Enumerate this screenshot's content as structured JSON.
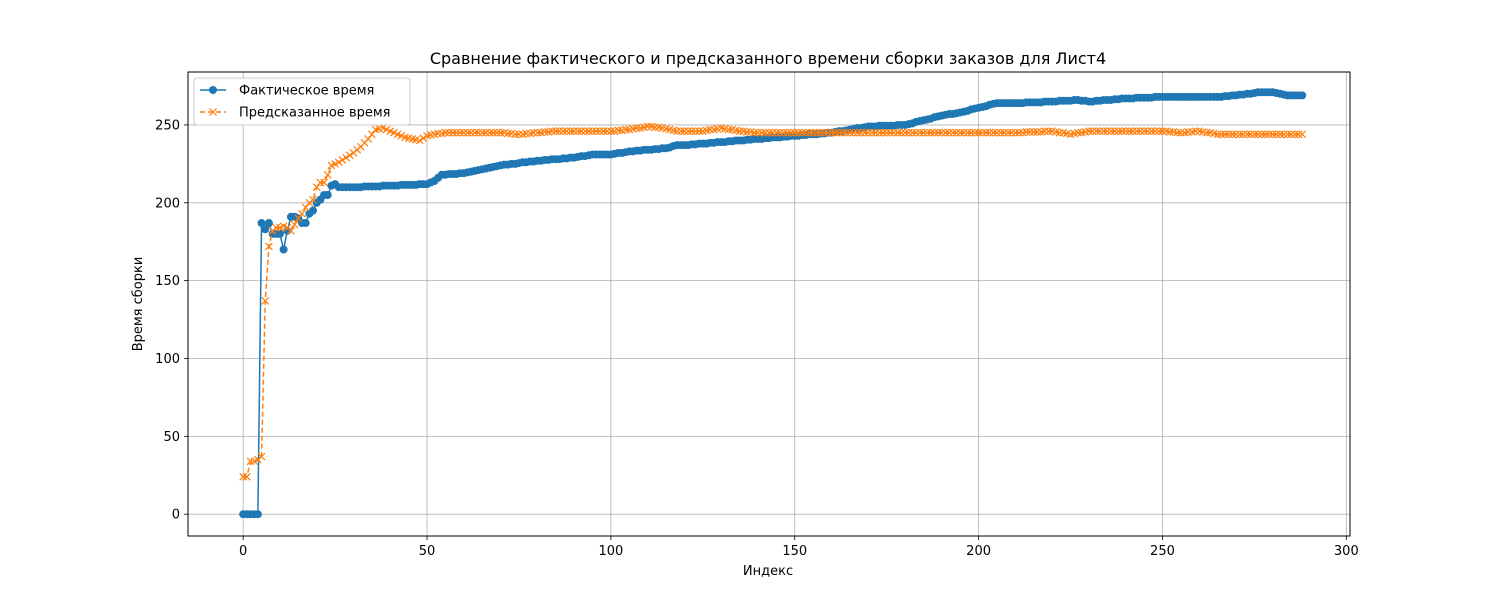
{
  "chart_data": {
    "type": "line",
    "title": "Сравнение фактического и предсказанного времени сборки заказов для Лист4",
    "xlabel": "Индекс",
    "ylabel": "Время сборки",
    "xlim": [
      -15,
      301
    ],
    "ylim": [
      -14,
      284
    ],
    "x_ticks": [
      0,
      50,
      100,
      150,
      200,
      250,
      300
    ],
    "y_ticks": [
      0,
      50,
      100,
      150,
      200,
      250
    ],
    "grid": true,
    "legend_position": "top-left",
    "x_start": 0,
    "x_end": 288,
    "series": [
      {
        "name": "Фактическое время",
        "color": "#1f77b4",
        "marker": "circle",
        "linestyle": "solid",
        "points": [
          [
            0,
            0
          ],
          [
            1,
            0
          ],
          [
            2,
            0
          ],
          [
            3,
            0
          ],
          [
            4,
            0
          ],
          [
            5,
            187
          ],
          [
            6,
            183
          ],
          [
            7,
            187
          ],
          [
            8,
            180
          ],
          [
            9,
            180
          ],
          [
            10,
            180
          ],
          [
            11,
            170
          ],
          [
            12,
            182
          ],
          [
            13,
            191
          ],
          [
            14,
            191
          ],
          [
            15,
            190
          ],
          [
            16,
            187
          ],
          [
            17,
            187
          ],
          [
            18,
            193
          ],
          [
            19,
            195
          ],
          [
            20,
            200
          ],
          [
            21,
            202
          ],
          [
            22,
            205
          ],
          [
            23,
            205
          ],
          [
            24,
            211
          ],
          [
            25,
            212
          ],
          [
            26,
            210
          ],
          [
            30,
            210
          ],
          [
            40,
            211
          ],
          [
            50,
            212
          ],
          [
            52,
            214
          ],
          [
            54,
            218
          ],
          [
            60,
            219
          ],
          [
            70,
            224
          ],
          [
            80,
            227
          ],
          [
            90,
            229
          ],
          [
            95,
            231
          ],
          [
            100,
            231
          ],
          [
            105,
            233
          ],
          [
            110,
            234
          ],
          [
            115,
            235
          ],
          [
            118,
            237
          ],
          [
            120,
            237
          ],
          [
            125,
            238
          ],
          [
            130,
            239
          ],
          [
            135,
            240
          ],
          [
            140,
            241
          ],
          [
            145,
            242
          ],
          [
            150,
            243
          ],
          [
            160,
            245
          ],
          [
            170,
            249
          ],
          [
            180,
            250
          ],
          [
            185,
            253
          ],
          [
            190,
            256
          ],
          [
            195,
            258
          ],
          [
            200,
            261
          ],
          [
            205,
            264
          ],
          [
            210,
            264
          ],
          [
            220,
            265
          ],
          [
            227,
            266
          ],
          [
            230,
            265
          ],
          [
            240,
            267
          ],
          [
            250,
            268
          ],
          [
            260,
            268
          ],
          [
            265,
            268
          ],
          [
            270,
            269
          ],
          [
            274,
            270
          ],
          [
            276,
            271
          ],
          [
            280,
            271
          ],
          [
            284,
            269
          ],
          [
            286,
            269
          ],
          [
            288,
            269
          ]
        ]
      },
      {
        "name": "Предсказанное время",
        "color": "#ff7f0e",
        "marker": "x",
        "linestyle": "dashed",
        "points": [
          [
            0,
            24
          ],
          [
            1,
            24
          ],
          [
            2,
            34
          ],
          [
            3,
            34
          ],
          [
            4,
            35
          ],
          [
            5,
            37
          ],
          [
            6,
            137
          ],
          [
            7,
            172
          ],
          [
            8,
            182
          ],
          [
            9,
            184
          ],
          [
            10,
            184
          ],
          [
            11,
            185
          ],
          [
            12,
            184
          ],
          [
            13,
            182
          ],
          [
            14,
            186
          ],
          [
            15,
            190
          ],
          [
            16,
            193
          ],
          [
            17,
            197
          ],
          [
            18,
            200
          ],
          [
            19,
            202
          ],
          [
            20,
            210
          ],
          [
            21,
            213
          ],
          [
            22,
            213
          ],
          [
            23,
            218
          ],
          [
            24,
            224
          ],
          [
            26,
            226
          ],
          [
            28,
            229
          ],
          [
            30,
            232
          ],
          [
            32,
            236
          ],
          [
            34,
            241
          ],
          [
            36,
            247
          ],
          [
            38,
            248
          ],
          [
            40,
            246
          ],
          [
            42,
            244
          ],
          [
            44,
            242
          ],
          [
            46,
            241
          ],
          [
            48,
            240
          ],
          [
            50,
            243
          ],
          [
            52,
            244
          ],
          [
            55,
            245
          ],
          [
            60,
            245
          ],
          [
            65,
            245
          ],
          [
            70,
            245
          ],
          [
            75,
            244
          ],
          [
            80,
            245
          ],
          [
            85,
            246
          ],
          [
            90,
            246
          ],
          [
            95,
            246
          ],
          [
            100,
            246
          ],
          [
            105,
            247
          ],
          [
            110,
            249
          ],
          [
            114,
            248
          ],
          [
            118,
            246
          ],
          [
            120,
            246
          ],
          [
            125,
            246
          ],
          [
            130,
            248
          ],
          [
            135,
            246
          ],
          [
            140,
            245
          ],
          [
            145,
            245
          ],
          [
            150,
            245
          ],
          [
            160,
            245
          ],
          [
            170,
            245
          ],
          [
            180,
            245
          ],
          [
            190,
            245
          ],
          [
            200,
            245
          ],
          [
            210,
            245
          ],
          [
            220,
            246
          ],
          [
            225,
            244
          ],
          [
            230,
            246
          ],
          [
            240,
            246
          ],
          [
            250,
            246
          ],
          [
            255,
            245
          ],
          [
            260,
            246
          ],
          [
            265,
            244
          ],
          [
            270,
            244
          ],
          [
            280,
            244
          ],
          [
            288,
            244
          ]
        ]
      }
    ]
  }
}
